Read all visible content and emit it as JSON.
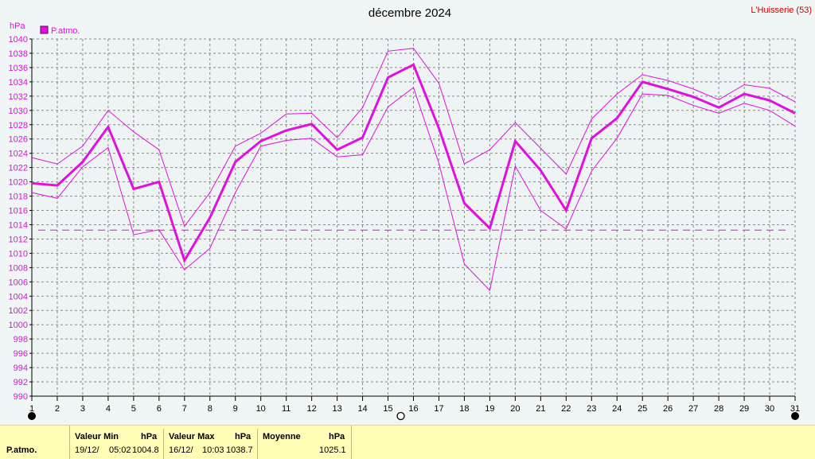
{
  "title": "décembre 2024",
  "station": "L'Huisserie (53)",
  "colors": {
    "accent": "#e010e0",
    "station_text": "#cc0000",
    "grid": "#909090",
    "background": "#f0f5f5",
    "panel": "#fffcb6"
  },
  "chart_data": {
    "type": "line",
    "unit_label": "hPa",
    "legend": {
      "label": "P.atmo.",
      "placement": "top-left"
    },
    "x": [
      1,
      2,
      3,
      4,
      5,
      6,
      7,
      8,
      9,
      10,
      11,
      12,
      13,
      14,
      15,
      16,
      17,
      18,
      19,
      20,
      21,
      22,
      23,
      24,
      25,
      26,
      27,
      28,
      29,
      30,
      31
    ],
    "x_ticks": [
      "1",
      "2",
      "3",
      "4",
      "5",
      "6",
      "7",
      "8",
      "9",
      "10",
      "11",
      "12",
      "13",
      "14",
      "15",
      "16",
      "17",
      "18",
      "19",
      "20",
      "21",
      "22",
      "23",
      "24",
      "25",
      "26",
      "27",
      "28",
      "29",
      "30",
      "31"
    ],
    "xlim": [
      1,
      31
    ],
    "ylim": [
      990,
      1040
    ],
    "y_ticks": [
      990,
      992,
      994,
      996,
      998,
      1000,
      1002,
      1004,
      1006,
      1008,
      1010,
      1012,
      1014,
      1016,
      1018,
      1020,
      1022,
      1024,
      1026,
      1028,
      1030,
      1032,
      1034,
      1036,
      1038,
      1040
    ],
    "grid": true,
    "series": [
      {
        "name": "P.atmo.",
        "role": "mean",
        "values": [
          1019.8,
          1019.5,
          1022.8,
          1027.7,
          1019.0,
          1020.0,
          1009.0,
          1015.0,
          1022.8,
          1025.7,
          1027.2,
          1028.1,
          1024.5,
          1026.2,
          1034.6,
          1036.4,
          1027.5,
          1017.0,
          1013.5,
          1025.7,
          1021.6,
          1016.0,
          1026.1,
          1028.9,
          1034.0,
          1033.0,
          1031.9,
          1030.4,
          1032.3,
          1031.4,
          1029.6
        ]
      },
      {
        "role": "max",
        "values": [
          1023.4,
          1022.5,
          1025.0,
          1030.0,
          1027.0,
          1024.5,
          1013.8,
          1018.5,
          1025.0,
          1026.8,
          1029.5,
          1029.6,
          1026.2,
          1030.4,
          1038.3,
          1038.7,
          1033.8,
          1022.5,
          1024.5,
          1028.3,
          1024.7,
          1021.1,
          1028.8,
          1032.3,
          1035.0,
          1034.2,
          1033.0,
          1031.5,
          1033.6,
          1033.1,
          1031.2
        ]
      },
      {
        "role": "min",
        "values": [
          1018.5,
          1017.7,
          1022.1,
          1024.8,
          1012.6,
          1013.3,
          1007.7,
          1010.7,
          1018.5,
          1025.0,
          1025.8,
          1026.1,
          1023.5,
          1023.8,
          1030.5,
          1033.2,
          1022.6,
          1008.5,
          1004.8,
          1022.2,
          1016.0,
          1013.4,
          1021.5,
          1026.1,
          1032.3,
          1032.1,
          1030.7,
          1029.6,
          1031.0,
          1030.0,
          1027.8
        ]
      }
    ],
    "reference_line": {
      "value": 1013.25,
      "style": "dashed"
    },
    "markers": [
      {
        "x": 1,
        "type": "full-moon"
      },
      {
        "x": 15.5,
        "type": "new-moon"
      },
      {
        "x": 31,
        "type": "full-moon"
      }
    ]
  },
  "stats": {
    "row_label": "P.atmo.",
    "min": {
      "header": "Valeur Min",
      "unit": "hPa",
      "date": "19/12/",
      "time": "05:02",
      "value": "1004.8"
    },
    "max": {
      "header": "Valeur Max",
      "unit": "hPa",
      "date": "16/12/",
      "time": "10:03",
      "value": "1038.7"
    },
    "mean": {
      "header": "Moyenne",
      "unit": "hPa",
      "value": "1025.1"
    }
  }
}
